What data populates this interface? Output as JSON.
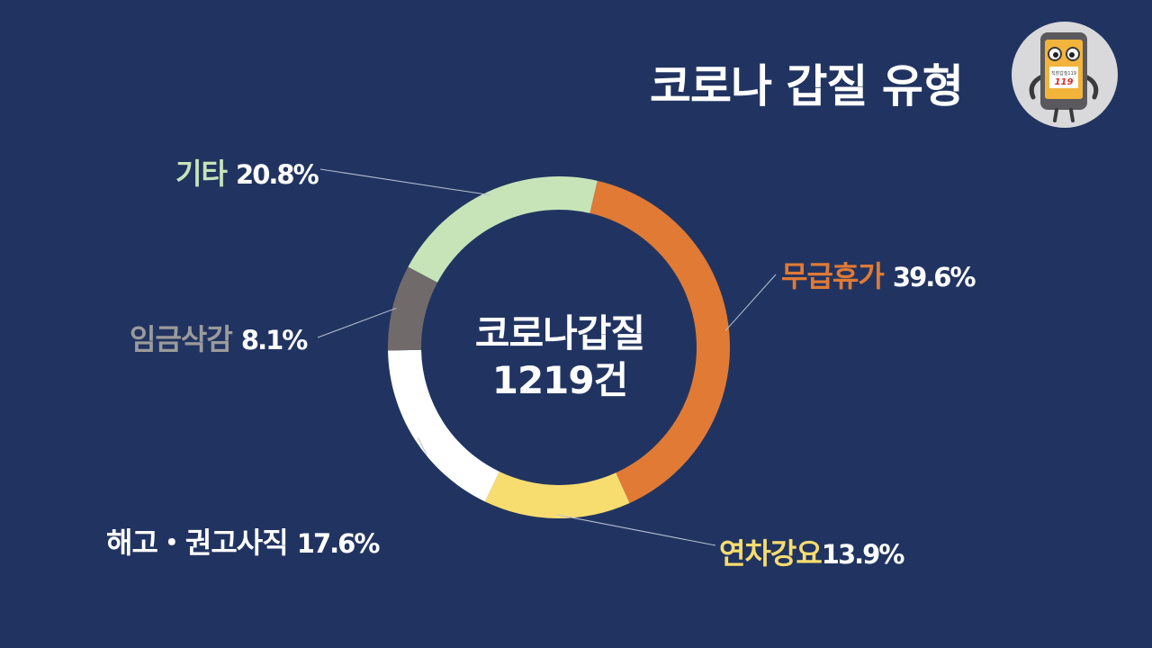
{
  "title": "코로나 갑질 유형",
  "mascot": {
    "icon": "phone-mascot-icon",
    "badge_text": "직장갑질119"
  },
  "center": {
    "line1": "코로나갑질",
    "line2": "1219건"
  },
  "chart_data": {
    "type": "pie",
    "donut": true,
    "total_label": "1219건",
    "slices": [
      {
        "label": "무급휴가",
        "value": 39.6,
        "display": "39.6%",
        "color": "#e07a35",
        "label_color": "#e07a35"
      },
      {
        "label": "연차강요",
        "value": 13.9,
        "display": "13.9%",
        "color": "#f7dd6f",
        "label_color": "#f7dd6f"
      },
      {
        "label": "해고・권고사직",
        "value": 17.6,
        "display": "17.6%",
        "color": "#ffffff",
        "label_color": "#ffffff"
      },
      {
        "label": "임금삭감",
        "value": 8.1,
        "display": "8.1%",
        "color": "#706a6a",
        "label_color": "#9b9b9b"
      },
      {
        "label": "기타",
        "value": 20.8,
        "display": "20.8%",
        "color": "#c7e4b9",
        "label_color": "#c7e4b9"
      }
    ],
    "start_angle_deg": 13,
    "direction": "clockwise"
  }
}
